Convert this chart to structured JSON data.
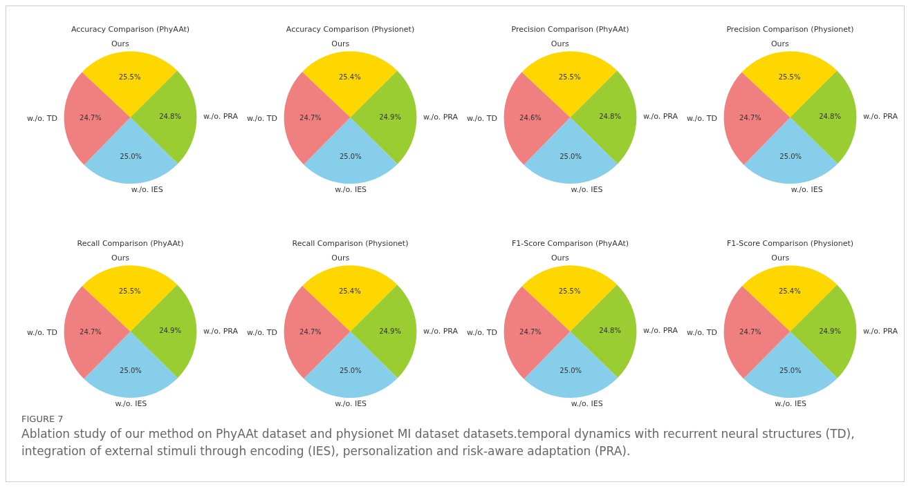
{
  "chart_data": [
    {
      "type": "pie",
      "title": "Accuracy Comparison (PhyAAt)",
      "categories": [
        "Ours",
        "w./o. PRA",
        "w./o. IES",
        "w./o. TD"
      ],
      "values": [
        25.5,
        24.8,
        25.0,
        24.7
      ],
      "value_labels": [
        "25.5%",
        "24.8%",
        "25.0%",
        "24.7%"
      ],
      "colors": [
        "#ffd700",
        "#9acd32",
        "#87ceeb",
        "#f08080"
      ]
    },
    {
      "type": "pie",
      "title": "Accuracy Comparison (Physionet)",
      "categories": [
        "Ours",
        "w./o. PRA",
        "w./o. IES",
        "w./o. TD"
      ],
      "values": [
        25.4,
        24.9,
        25.0,
        24.7
      ],
      "value_labels": [
        "25.4%",
        "24.9%",
        "25.0%",
        "24.7%"
      ],
      "colors": [
        "#ffd700",
        "#9acd32",
        "#87ceeb",
        "#f08080"
      ]
    },
    {
      "type": "pie",
      "title": "Precision Comparison (PhyAAt)",
      "categories": [
        "Ours",
        "w./o. PRA",
        "w./o. IES",
        "w./o. TD"
      ],
      "values": [
        25.5,
        24.8,
        25.0,
        24.6
      ],
      "value_labels": [
        "25.5%",
        "24.8%",
        "25.0%",
        "24.6%"
      ],
      "colors": [
        "#ffd700",
        "#9acd32",
        "#87ceeb",
        "#f08080"
      ]
    },
    {
      "type": "pie",
      "title": "Precision Comparison (Physionet)",
      "categories": [
        "Ours",
        "w./o. PRA",
        "w./o. IES",
        "w./o. TD"
      ],
      "values": [
        25.5,
        24.8,
        25.0,
        24.7
      ],
      "value_labels": [
        "25.5%",
        "24.8%",
        "25.0%",
        "24.7%"
      ],
      "colors": [
        "#ffd700",
        "#9acd32",
        "#87ceeb",
        "#f08080"
      ]
    },
    {
      "type": "pie",
      "title": "Recall Comparison (PhyAAt)",
      "categories": [
        "Ours",
        "w./o. PRA",
        "w./o. IES",
        "w./o. TD"
      ],
      "values": [
        25.5,
        24.9,
        25.0,
        24.7
      ],
      "value_labels": [
        "25.5%",
        "24.9%",
        "25.0%",
        "24.7%"
      ],
      "colors": [
        "#ffd700",
        "#9acd32",
        "#87ceeb",
        "#f08080"
      ]
    },
    {
      "type": "pie",
      "title": "Recall Comparison (Physionet)",
      "categories": [
        "Ours",
        "w./o. PRA",
        "w./o. IES",
        "w./o. TD"
      ],
      "values": [
        25.4,
        24.9,
        25.0,
        24.7
      ],
      "value_labels": [
        "25.4%",
        "24.9%",
        "25.0%",
        "24.7%"
      ],
      "colors": [
        "#ffd700",
        "#9acd32",
        "#87ceeb",
        "#f08080"
      ]
    },
    {
      "type": "pie",
      "title": "F1-Score Comparison (PhyAAt)",
      "categories": [
        "Ours",
        "w./o. PRA",
        "w./o. IES",
        "w./o. TD"
      ],
      "values": [
        25.5,
        24.8,
        25.0,
        24.7
      ],
      "value_labels": [
        "25.5%",
        "24.8%",
        "25.0%",
        "24.7%"
      ],
      "colors": [
        "#ffd700",
        "#9acd32",
        "#87ceeb",
        "#f08080"
      ]
    },
    {
      "type": "pie",
      "title": "F1-Score Comparison (Physionet)",
      "categories": [
        "Ours",
        "w./o. PRA",
        "w./o. IES",
        "w./o. TD"
      ],
      "values": [
        25.4,
        24.9,
        25.0,
        24.7
      ],
      "value_labels": [
        "25.4%",
        "24.9%",
        "25.0%",
        "24.7%"
      ],
      "colors": [
        "#ffd700",
        "#9acd32",
        "#87ceeb",
        "#f08080"
      ],
      "annotations": [
        "FIGURE 7",
        "Ablation study of our method on PhyAAt dataset and physionet MI dataset datasets.temporal dynamics with recurrent neural structures (TD), integration of external stimuli through encoding (IES), personalization and risk-aware adaptation (PRA)."
      ]
    }
  ]
}
